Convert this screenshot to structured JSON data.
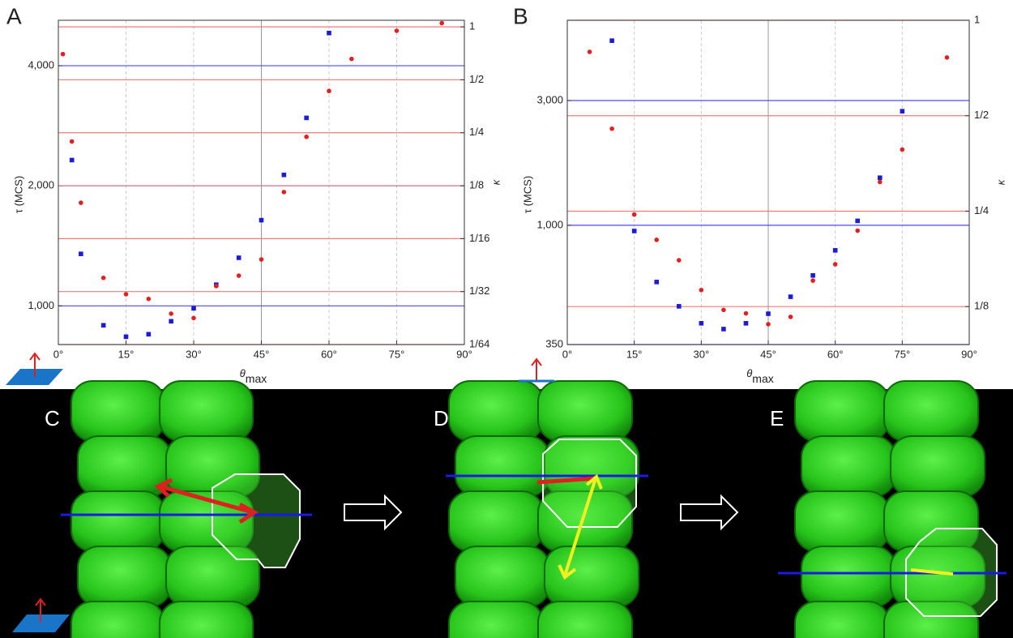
{
  "chart_data": [
    {
      "type": "scatter",
      "label": "A",
      "xlabel": "θ",
      "xlabel_sub": "max",
      "ylabel": "τ (MCS)",
      "y2label": "κ",
      "xlim": [
        0,
        90
      ],
      "xticks": [
        {
          "value": 0,
          "label": "0°"
        },
        {
          "value": 15,
          "label": "15°"
        },
        {
          "value": 30,
          "label": "30°"
        },
        {
          "value": 45,
          "label": "45°"
        },
        {
          "value": 60,
          "label": "60°"
        },
        {
          "value": 75,
          "label": "75°"
        },
        {
          "value": 90,
          "label": "90°"
        }
      ],
      "ylim": [
        800,
        5200
      ],
      "ylog": true,
      "yticks": [
        {
          "value": 1000,
          "label": "1,000"
        },
        {
          "value": 2000,
          "label": "2,000"
        },
        {
          "value": 4000,
          "label": "4,000"
        }
      ],
      "y2lim": [
        0.015625,
        1.09
      ],
      "y2log": true,
      "y2ticks": [
        1,
        {
          "value": 0.5,
          "label": "1/2"
        },
        {
          "value": 0.25,
          "label": "1/4"
        },
        {
          "value": 0.125,
          "label": "1/8"
        },
        {
          "value": 0.0625,
          "label": "1/16"
        },
        {
          "value": 0.03125,
          "label": "1/32"
        },
        {
          "value": 0.015625,
          "label": "1/64"
        }
      ],
      "grid": true,
      "series": [
        {
          "color": "#1c1cd6",
          "marker": "square",
          "x": [
            3,
            5,
            10,
            15,
            20,
            25,
            30,
            35,
            40,
            45,
            50,
            55,
            60
          ],
          "values": [
            2320,
            1350,
            894,
            837,
            849,
            915,
            986,
            1130,
            1320,
            1640,
            2130,
            2960,
            4830
          ]
        },
        {
          "color": "#e32020",
          "marker": "circle",
          "axis": "y2",
          "x": [
            1,
            3,
            5,
            10,
            15,
            20,
            25,
            30,
            35,
            40,
            45,
            50,
            55,
            60,
            65,
            75,
            85
          ],
          "values": [
            0.7,
            0.223,
            0.1,
            0.0374,
            0.0302,
            0.0284,
            0.0234,
            0.0221,
            0.0336,
            0.0385,
            0.0476,
            0.115,
            0.237,
            0.432,
            0.657,
            0.95,
            1.05
          ]
        }
      ]
    },
    {
      "type": "scatter",
      "label": "B",
      "xlabel": "θ",
      "xlabel_sub": "max",
      "ylabel": "τ (MCS)",
      "y2label": "κ",
      "xlim": [
        0,
        90
      ],
      "xticks": [
        {
          "value": 0,
          "label": "0°"
        },
        {
          "value": 15,
          "label": "15°"
        },
        {
          "value": 30,
          "label": "30°"
        },
        {
          "value": 45,
          "label": "45°"
        },
        {
          "value": 60,
          "label": "60°"
        },
        {
          "value": 75,
          "label": "75°"
        },
        {
          "value": 90,
          "label": "90°"
        }
      ],
      "ylim": [
        350,
        6080
      ],
      "ylog": true,
      "yticks": [
        350,
        {
          "value": 1000,
          "label": "1,000"
        },
        {
          "value": 3000,
          "label": "3,000"
        }
      ],
      "y2lim": [
        0.0949,
        1
      ],
      "y2log": true,
      "y2ticks": [
        1,
        {
          "value": 0.5,
          "label": "1/2"
        },
        {
          "value": 0.25,
          "label": "1/4"
        },
        {
          "value": 0.125,
          "label": "1/8"
        }
      ],
      "grid": true,
      "series": [
        {
          "color": "#1c1cd6",
          "marker": "square",
          "x": [
            10,
            15,
            20,
            25,
            30,
            35,
            40,
            45,
            50,
            55,
            60,
            65,
            70,
            75
          ],
          "values": [
            5080,
            951,
            607,
            490,
            422,
            401,
            422,
            459,
            533,
            643,
            802,
            1040,
            1520,
            2730
          ]
        },
        {
          "color": "#e32020",
          "marker": "circle",
          "axis": "y2",
          "x": [
            5,
            10,
            15,
            20,
            25,
            30,
            35,
            40,
            45,
            50,
            55,
            60,
            65,
            70,
            75,
            85
          ],
          "values": [
            0.795,
            0.455,
            0.244,
            0.203,
            0.175,
            0.141,
            0.122,
            0.119,
            0.11,
            0.116,
            0.151,
            0.17,
            0.217,
            0.309,
            0.391,
            0.763
          ]
        }
      ]
    }
  ],
  "panels": [
    {
      "label": "C"
    },
    {
      "label": "D"
    },
    {
      "label": "E"
    }
  ]
}
